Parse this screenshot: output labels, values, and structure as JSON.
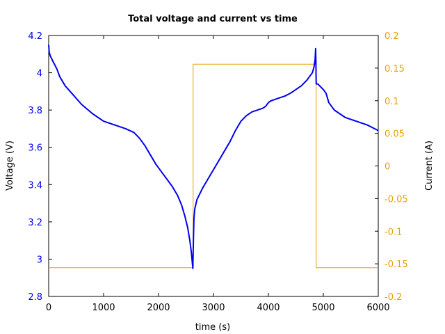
{
  "chart_data": {
    "type": "line",
    "title": "Total voltage and current vs time",
    "xlabel": "time (s)",
    "ylabel_left": "Voltage (V)",
    "ylabel_right": "Current (A)",
    "xlim": [
      0,
      6000
    ],
    "ylim_left": [
      2.8,
      4.2
    ],
    "ylim_right": [
      -0.2,
      0.2
    ],
    "xticks": [
      "0",
      "1000",
      "2000",
      "3000",
      "4000",
      "5000",
      "6000"
    ],
    "yticks_left": [
      "2.8",
      "3",
      "3.2",
      "3.4",
      "3.6",
      "3.8",
      "4",
      "4.2"
    ],
    "yticks_right": [
      "-0.2",
      "-0.15",
      "-0.1",
      "-0.05",
      "0",
      "0.05",
      "0.1",
      "0.15",
      "0.2"
    ],
    "grid": false,
    "colors": {
      "voltage": "#0000ee",
      "current": "#e6a100",
      "left_ticks": "#0000ee",
      "right_ticks": "#e6a100"
    },
    "series": [
      {
        "axis": "left",
        "x": [
          0,
          10,
          30,
          80,
          150,
          200,
          300,
          450,
          600,
          800,
          1000,
          1200,
          1400,
          1550,
          1650,
          1750,
          1850,
          1950,
          2050,
          2150,
          2250,
          2350,
          2420,
          2480,
          2530,
          2570,
          2600,
          2615,
          2625,
          2635,
          2645,
          2660,
          2700,
          2800,
          2900,
          3000,
          3100,
          3200,
          3300,
          3400,
          3500,
          3600,
          3700,
          3800,
          3900,
          3950,
          4000,
          4050,
          4100,
          4200,
          4300,
          4400,
          4500,
          4600,
          4700,
          4750,
          4800,
          4830,
          4850,
          4860,
          4865,
          4868,
          4870,
          4875,
          4900,
          4950,
          5000,
          5050,
          5100,
          5150,
          5200,
          5300,
          5400,
          5500,
          5600,
          5700,
          5800,
          5900,
          6000
        ],
        "y": [
          4.15,
          4.11,
          4.09,
          4.06,
          4.02,
          3.98,
          3.93,
          3.88,
          3.83,
          3.78,
          3.74,
          3.72,
          3.7,
          3.68,
          3.65,
          3.61,
          3.56,
          3.51,
          3.47,
          3.43,
          3.39,
          3.34,
          3.29,
          3.23,
          3.17,
          3.1,
          3.03,
          2.98,
          2.95,
          3.1,
          3.22,
          3.27,
          3.32,
          3.38,
          3.43,
          3.48,
          3.53,
          3.58,
          3.63,
          3.69,
          3.74,
          3.77,
          3.79,
          3.8,
          3.81,
          3.82,
          3.84,
          3.85,
          3.855,
          3.865,
          3.875,
          3.89,
          3.91,
          3.93,
          3.96,
          3.98,
          4.0,
          4.03,
          4.07,
          4.13,
          4.07,
          3.98,
          3.94,
          3.94,
          3.94,
          3.925,
          3.91,
          3.89,
          3.84,
          3.82,
          3.8,
          3.78,
          3.76,
          3.75,
          3.74,
          3.73,
          3.72,
          3.705,
          3.69
        ]
      },
      {
        "axis": "right",
        "x": [
          0,
          2630,
          2630,
          4870,
          4870,
          6000
        ],
        "y": [
          -0.156,
          -0.156,
          0.156,
          0.156,
          -0.156,
          -0.156
        ]
      }
    ]
  }
}
